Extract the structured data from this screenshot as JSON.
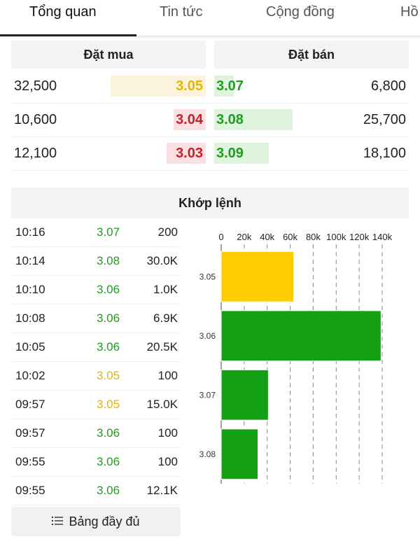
{
  "tabs": [
    {
      "label": "Tổng quan",
      "active": true
    },
    {
      "label": "Tin tức",
      "active": false
    },
    {
      "label": "Cộng đồng",
      "active": false
    },
    {
      "label": "Hồ",
      "active": false
    }
  ],
  "order_book": {
    "buy_header": "Đặt mua",
    "sell_header": "Đặt bán",
    "rows": [
      {
        "buy_volume": "32,500",
        "buy_price": "3.05",
        "buy_color": "#e5b700",
        "buy_bar_color": "#fbf3dc",
        "buy_level": 0.44,
        "sell_price": "3.07",
        "sell_color": "#1f9e1f",
        "sell_volume": "6,800",
        "sell_level": 0.09
      },
      {
        "buy_volume": "10,600",
        "buy_price": "3.04",
        "buy_color": "#c6212b",
        "buy_bar_color": "#fbe0e2",
        "buy_level": 0.15,
        "sell_price": "3.08",
        "sell_color": "#1f9e1f",
        "sell_volume": "25,700",
        "sell_level": 0.36
      },
      {
        "buy_volume": "12,100",
        "buy_price": "3.03",
        "buy_color": "#c6212b",
        "buy_bar_color": "#fbe0e2",
        "buy_level": 0.18,
        "sell_price": "3.09",
        "sell_color": "#1f9e1f",
        "sell_volume": "18,100",
        "sell_level": 0.25
      }
    ]
  },
  "matched": {
    "header": "Khớp lệnh",
    "trades": [
      {
        "time": "10:16",
        "price": "3.07",
        "volume": "200",
        "color": "#1f9e1f"
      },
      {
        "time": "10:14",
        "price": "3.08",
        "volume": "30.0K",
        "color": "#1f9e1f"
      },
      {
        "time": "10:10",
        "price": "3.06",
        "volume": "1.0K",
        "color": "#1f9e1f"
      },
      {
        "time": "10:08",
        "price": "3.06",
        "volume": "6.9K",
        "color": "#1f9e1f"
      },
      {
        "time": "10:05",
        "price": "3.06",
        "volume": "20.5K",
        "color": "#1f9e1f"
      },
      {
        "time": "10:02",
        "price": "3.05",
        "volume": "100",
        "color": "#e5b700"
      },
      {
        "time": "09:57",
        "price": "3.05",
        "volume": "15.0K",
        "color": "#e5b700"
      },
      {
        "time": "09:57",
        "price": "3.06",
        "volume": "100",
        "color": "#1f9e1f"
      },
      {
        "time": "09:55",
        "price": "3.06",
        "volume": "100",
        "color": "#1f9e1f"
      },
      {
        "time": "09:55",
        "price": "3.06",
        "volume": "12.1K",
        "color": "#1f9e1f"
      }
    ],
    "full_button_label": "Bảng đầy đủ",
    "full_button_icon": "list-icon"
  },
  "chart_data": {
    "type": "bar",
    "orientation": "horizontal",
    "categories": [
      "3.05",
      "3.06",
      "3.07",
      "3.08"
    ],
    "values": [
      63000,
      139000,
      41000,
      32000
    ],
    "colors": [
      "#ffcc00",
      "#14a014",
      "#14a014",
      "#14a014"
    ],
    "x_ticks": [
      0,
      20000,
      40000,
      60000,
      80000,
      100000,
      120000,
      140000
    ],
    "x_tick_labels": [
      "0",
      "20k",
      "40k",
      "60k",
      "80k",
      "100k",
      "120k",
      "140k"
    ],
    "xlim": [
      0,
      140000
    ],
    "grid": "vertical-dashed",
    "axis_position": "top"
  }
}
